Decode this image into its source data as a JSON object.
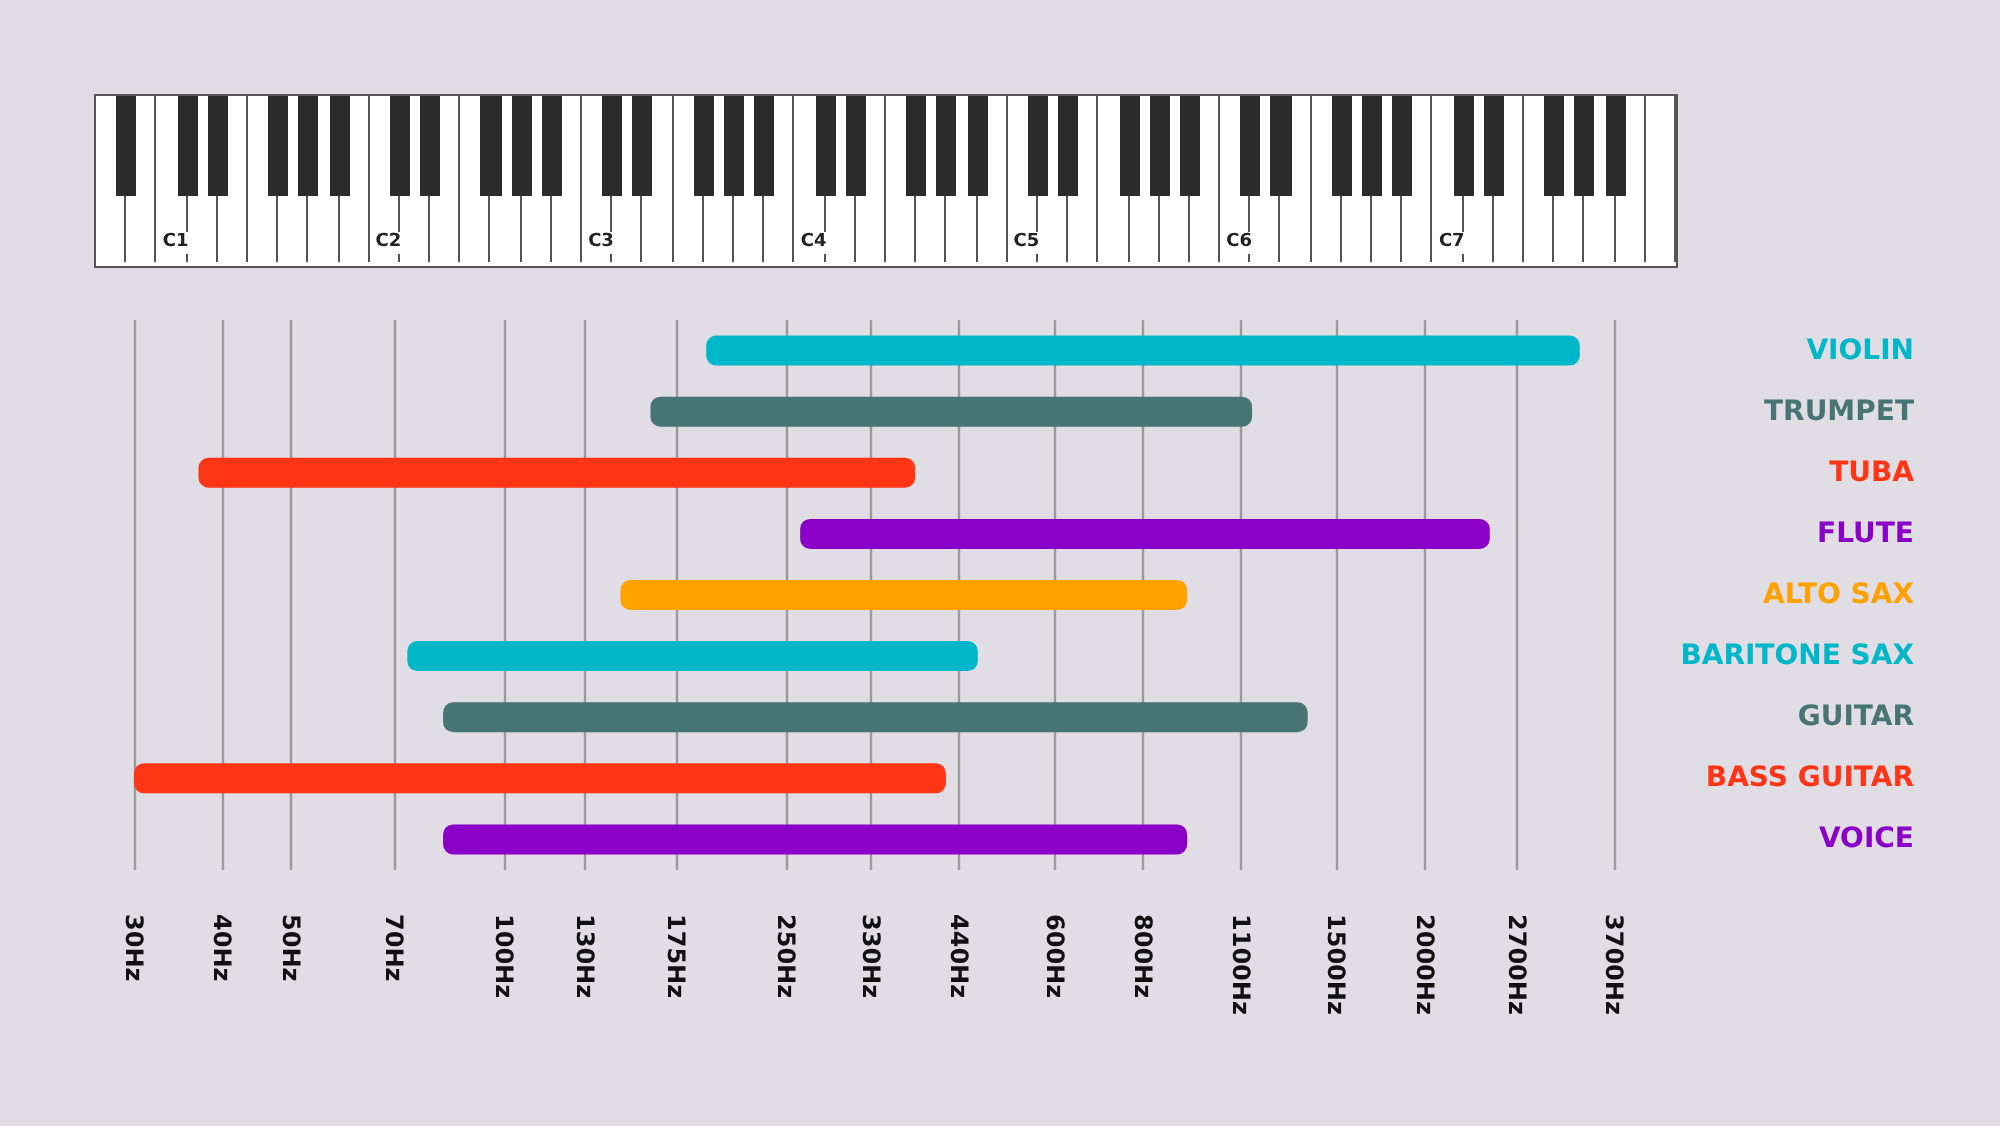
{
  "chart_data": {
    "type": "bar",
    "orientation": "horizontal",
    "categories": [
      "VIOLIN",
      "TRUMPET",
      "TUBA",
      "FLUTE",
      "ALTO SAX",
      "BARITONE SAX",
      "GUITAR",
      "BASS GUITAR",
      "VOICE"
    ],
    "base": [
      193,
      161,
      37,
      262,
      146,
      73,
      82,
      30,
      82
    ],
    "values": [
      3117,
      979,
      344,
      2208,
      777,
      394,
      1284,
      391,
      841
    ],
    "log": "x",
    "colors": [
      "#00b7c9",
      "#487573",
      "#ff3516",
      "#8a00c8",
      "#ffa200",
      "#00b7c9",
      "#487573",
      "#ff3516",
      "#8a00c8"
    ],
    "xlim": [
      30,
      3700
    ],
    "xticks": [
      {
        "value": 30,
        "label": "30Hz"
      },
      {
        "value": 40,
        "label": "40Hz"
      },
      {
        "value": 50,
        "label": "50Hz"
      },
      {
        "value": 70,
        "label": "70Hz"
      },
      {
        "value": 100,
        "label": "100Hz"
      },
      {
        "value": 130,
        "label": "130Hz"
      },
      {
        "value": 175,
        "label": "175Hz"
      },
      {
        "value": 250,
        "label": "250Hz"
      },
      {
        "value": 330,
        "label": "330Hz"
      },
      {
        "value": 440,
        "label": "440Hz"
      },
      {
        "value": 600,
        "label": "600Hz"
      },
      {
        "value": 800,
        "label": "800Hz"
      },
      {
        "value": 1100,
        "label": "1100Hz"
      },
      {
        "value": 1500,
        "label": "1500Hz"
      },
      {
        "value": 2000,
        "label": "2000Hz"
      },
      {
        "value": 2700,
        "label": "2700Hz"
      },
      {
        "value": 3700,
        "label": "3700Hz"
      }
    ],
    "grid": "x",
    "annotations": [
      "C1",
      "C2",
      "C3",
      "C4",
      "C5",
      "C6",
      "C7"
    ]
  }
}
